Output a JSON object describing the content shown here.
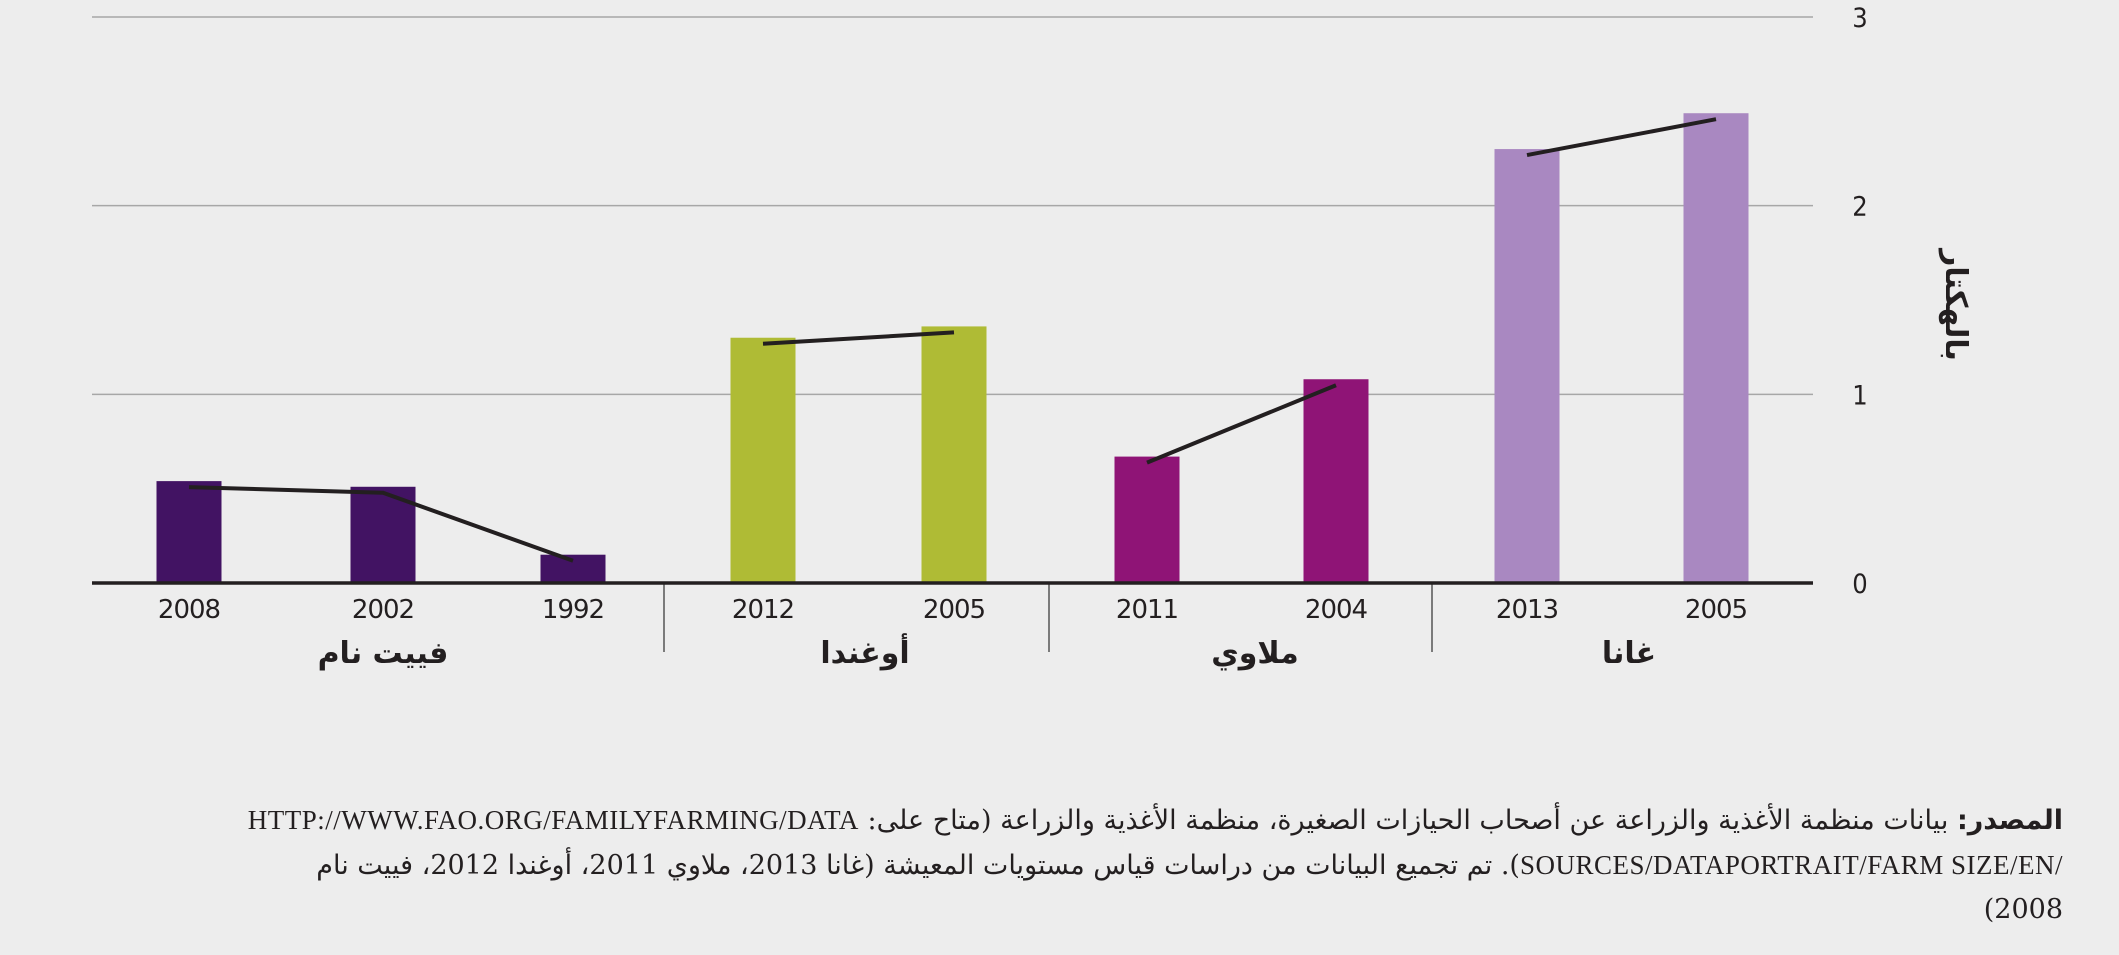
{
  "chart_data": {
    "type": "bar",
    "ylabel": "بالهكتار",
    "ylim": [
      0,
      3
    ],
    "yticks": [
      "0",
      "1",
      "2",
      "3"
    ],
    "line_connects_series": true,
    "groups": [
      {
        "name": "غانا",
        "color": "#a988c1",
        "categories": [
          "2005",
          "2013"
        ],
        "values": [
          2.49,
          2.3
        ]
      },
      {
        "name": "ملاوي",
        "color": "#8f1476",
        "categories": [
          "2004",
          "2011"
        ],
        "values": [
          1.08,
          0.67
        ]
      },
      {
        "name": "أوغندا",
        "color": "#afbb35",
        "categories": [
          "2005",
          "2012"
        ],
        "values": [
          1.36,
          1.3
        ]
      },
      {
        "name": "فييت نام",
        "color": "#421363",
        "categories": [
          "1992",
          "2002",
          "2008"
        ],
        "values": [
          0.15,
          0.51,
          0.54
        ]
      }
    ]
  },
  "source": {
    "label": "المصدر:",
    "text1": " بيانات منظمة الأغذية والزراعة عن أصحاب الحيازات الصغيرة، منظمة الأغذية والزراعة (متاح على: ",
    "url1": "HTTP://WWW.FAO.ORG/FAMILY",
    "url2": "FARMING/DATA SOURCES/DATAPORTRAIT/FARM SIZE/EN/",
    "text2": "). تم تجميع البيانات من دراسات قياس مستويات المعيشة (غانا 2013، ملاوي 2011، أوغندا 2012، فييت نام 2008)"
  }
}
